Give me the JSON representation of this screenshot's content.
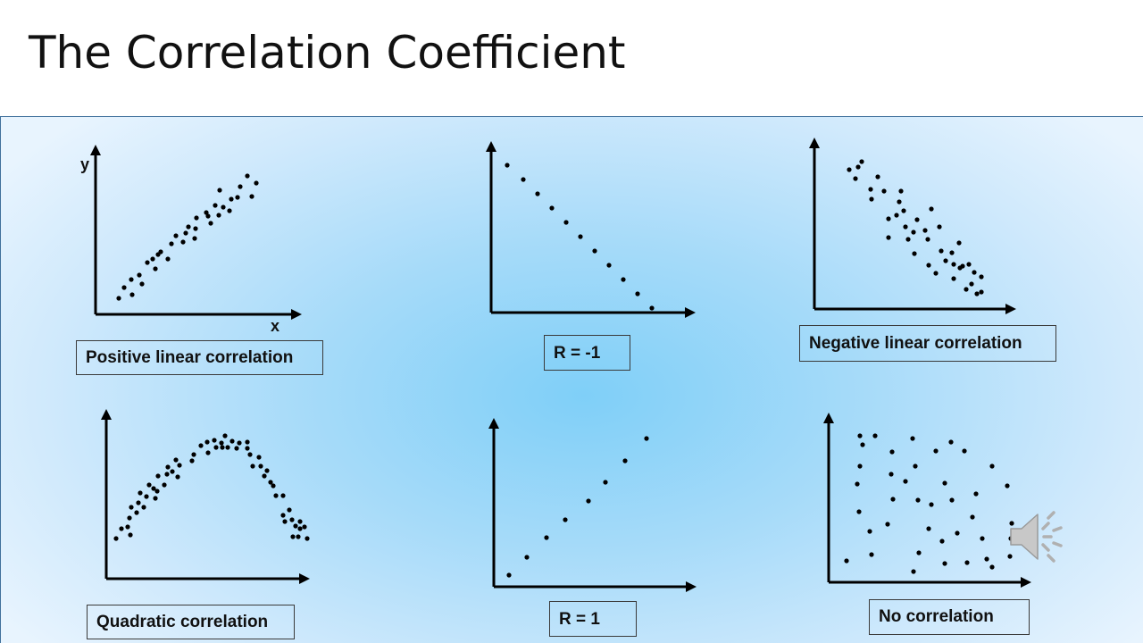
{
  "slide": {
    "title": "The Correlation Coefficient"
  },
  "plots": {
    "positive": {
      "label": "Positive linear correlation",
      "y_axis_label": "y",
      "x_axis_label": "x"
    },
    "r_minus_one": {
      "label": "R = -1"
    },
    "negative": {
      "label": "Negative linear correlation"
    },
    "quadratic": {
      "label": "Quadratic correlation"
    },
    "r_one": {
      "label": "R = 1"
    },
    "none": {
      "label": "No correlation"
    }
  },
  "icons": {
    "audio": "speaker-icon"
  },
  "colors": {
    "axis": "#000000",
    "dot": "#000000",
    "panel_center": "#7fcff8",
    "panel_edge": "#e8f4fe"
  }
}
